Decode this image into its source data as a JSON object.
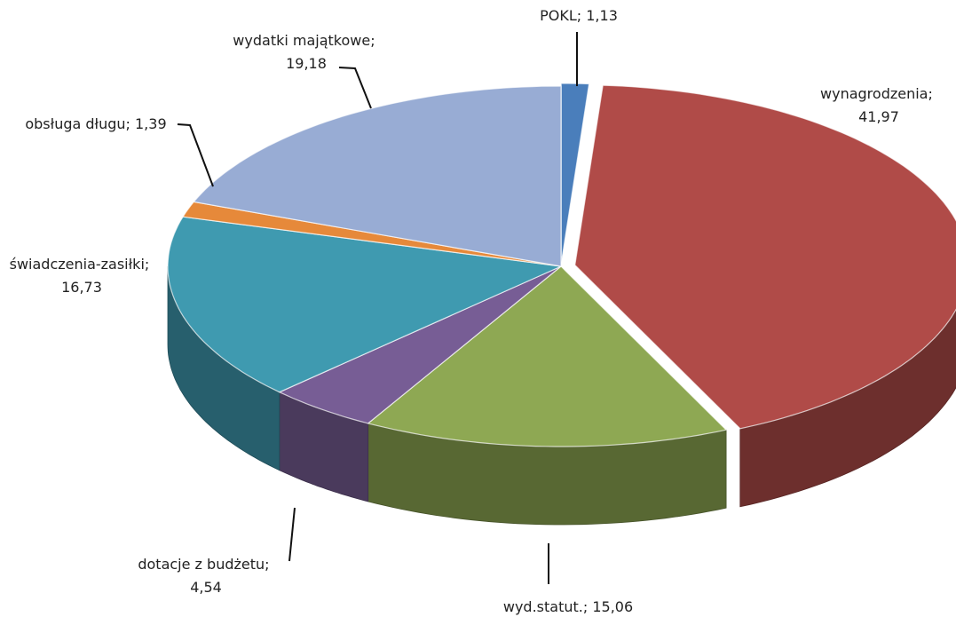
{
  "chart_data": {
    "type": "pie3d",
    "categories": [
      "POKL",
      "wynagrodzenia",
      "wyd.statut.",
      "dotacje z budżetu",
      "świadczenia-zasiłki",
      "obsługa długu",
      "wydatki majątkowe"
    ],
    "values": [
      1.13,
      41.97,
      15.06,
      4.54,
      16.73,
      1.39,
      19.18
    ],
    "value_labels": [
      "1,13",
      "41,97",
      "15,06",
      "4,54",
      "16,73",
      "1,39",
      "19,18"
    ],
    "label_separator": "; ",
    "colors": [
      "#4a7ebb",
      "#b04b48",
      "#8ea853",
      "#775d95",
      "#3f9ab0",
      "#e6893a",
      "#98acd4"
    ]
  }
}
